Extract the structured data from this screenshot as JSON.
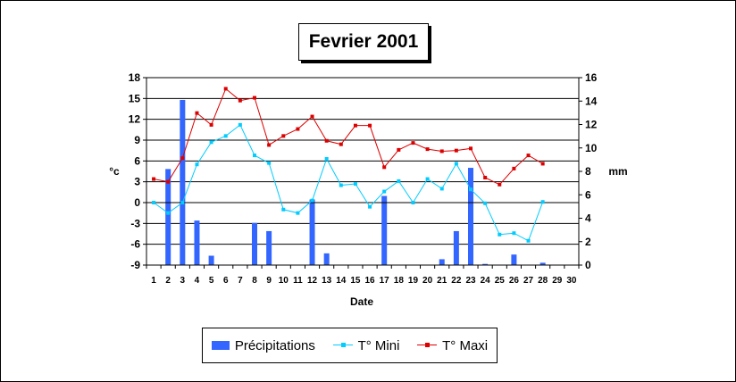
{
  "chart_data": {
    "type": "bar+line",
    "title": "Fevrier 2001",
    "xlabel": "Date",
    "ylabel_left": "°c",
    "ylabel_right": "mm",
    "y_left": {
      "min": -9,
      "max": 18,
      "ticks": [
        18,
        15,
        12,
        9,
        6,
        3,
        0,
        -3,
        -6,
        -9
      ]
    },
    "y_right": {
      "min": 0,
      "max": 16,
      "ticks": [
        16,
        14,
        12,
        10,
        8,
        6,
        4,
        2,
        0
      ]
    },
    "categories": [
      "1",
      "2",
      "3",
      "4",
      "5",
      "6",
      "7",
      "8",
      "9",
      "10",
      "11",
      "12",
      "13",
      "14",
      "15",
      "16",
      "17",
      "18",
      "19",
      "20",
      "21",
      "22",
      "23",
      "24",
      "25",
      "26",
      "27",
      "28",
      "29",
      "30"
    ],
    "series": [
      {
        "name": "Précipitations",
        "type": "bar",
        "axis": "right",
        "color": "#3366ff",
        "values": [
          0,
          8.2,
          14.1,
          3.8,
          0.8,
          0,
          0,
          3.6,
          2.9,
          0,
          0,
          5.6,
          1.0,
          0,
          0,
          0,
          5.9,
          0,
          0,
          0,
          0.5,
          2.9,
          8.3,
          0.1,
          0,
          0.9,
          0,
          0.2,
          null,
          null
        ]
      },
      {
        "name": "T° Mini",
        "type": "line",
        "axis": "left",
        "color": "#00ccff",
        "values": [
          0,
          -1.5,
          0,
          5.5,
          8.7,
          9.6,
          11.2,
          6.8,
          5.7,
          -1,
          -1.5,
          0.3,
          6.3,
          2.5,
          2.7,
          -0.6,
          1.6,
          3.1,
          0,
          3.4,
          2,
          5.6,
          1.9,
          -0.1,
          -4.6,
          -4.4,
          -5.5,
          0.1,
          null,
          null
        ]
      },
      {
        "name": "T° Maxi",
        "type": "line",
        "axis": "left",
        "color": "#dd0000",
        "values": [
          3.4,
          3,
          6.4,
          12.9,
          11.2,
          16.4,
          14.7,
          15.1,
          8.3,
          9.6,
          10.6,
          12.4,
          8.9,
          8.4,
          11.1,
          11.1,
          5.1,
          7.6,
          8.6,
          7.7,
          7.4,
          7.5,
          7.8,
          3.6,
          2.6,
          4.9,
          6.8,
          5.6,
          null,
          null
        ]
      }
    ]
  }
}
